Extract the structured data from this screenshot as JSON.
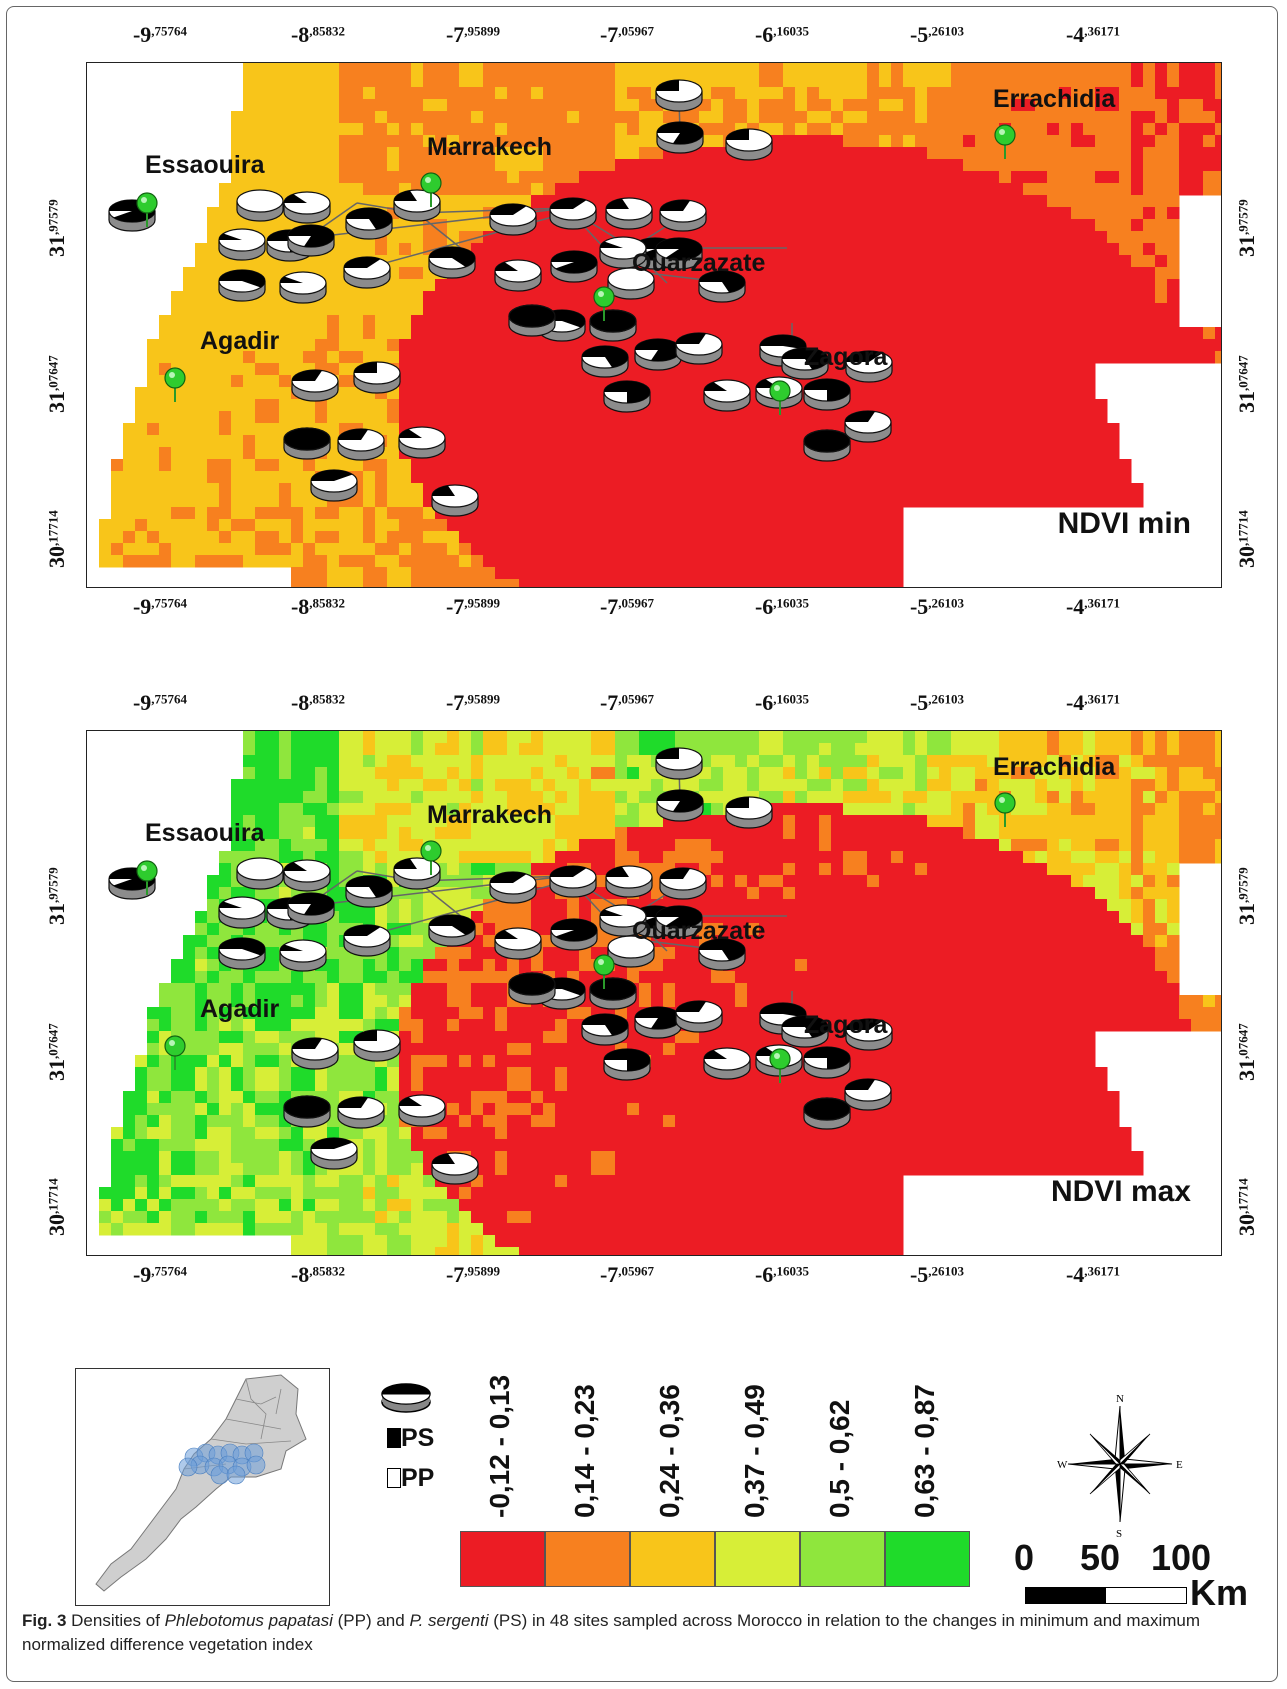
{
  "figure": {
    "caption_label": "Fig. 3",
    "caption_parts": [
      {
        "text": " Densities of ",
        "italic": false
      },
      {
        "text": "Phlebotomus papatasi",
        "italic": true
      },
      {
        "text": " (PP) and ",
        "italic": false
      },
      {
        "text": "P. sergenti",
        "italic": true
      },
      {
        "text": " (PS) in 48 sites sampled across Morocco in relation to the changes in minimum and maximum normalized difference vegetation index",
        "italic": false
      }
    ]
  },
  "lon_ticks": [
    {
      "int": "-9",
      "dec": ",75764"
    },
    {
      "int": "-8",
      "dec": ",85832"
    },
    {
      "int": "-7",
      "dec": ",95899"
    },
    {
      "int": "-7",
      "dec": ",05967"
    },
    {
      "int": "-6",
      "dec": ",16035"
    },
    {
      "int": "-5",
      "dec": ",26103"
    },
    {
      "int": "-4",
      "dec": ",36171"
    }
  ],
  "lat_ticks": [
    {
      "int": "31",
      "dec": ",97579"
    },
    {
      "int": "31",
      "dec": ",07647"
    },
    {
      "int": "30",
      "dec": ",17714"
    }
  ],
  "panels": [
    {
      "label": "NDVI min",
      "palette": "min"
    },
    {
      "label": "NDVI max",
      "palette": "max"
    }
  ],
  "cities": [
    {
      "name": "Essaouira"
    },
    {
      "name": "Marrakech"
    },
    {
      "name": "Ouarzazate"
    },
    {
      "name": "Agadir"
    },
    {
      "name": "Zagora"
    },
    {
      "name": "Errachidia"
    }
  ],
  "sites_ps_fraction": [
    0.25,
    0.8,
    0.25,
    0.9,
    0.0,
    0.15,
    0.7,
    0.2,
    0.35,
    0.35,
    0.2,
    0.3,
    0.1,
    0.75,
    0.8,
    0.35,
    0.6,
    0.1,
    0.65,
    0.15,
    0.9,
    0.9,
    0.1,
    0.85,
    0.0,
    0.7,
    0.6,
    1.0,
    0.7,
    0.8,
    0.3,
    0.25,
    1.0,
    0.75,
    0.3,
    0.55,
    0.35,
    0.15,
    0.15,
    0.75,
    0.7,
    0.3,
    1.0,
    1.0,
    0.3,
    0.15,
    0.4,
    0.2
  ],
  "legend": {
    "species": [
      {
        "code": "PS",
        "fill": "#000000"
      },
      {
        "code": "PP",
        "fill": "#ffffff"
      }
    ],
    "classes": [
      {
        "range": "-0,12 - 0,13",
        "color": "#ec1c24"
      },
      {
        "range": "0,14 - 0,23",
        "color": "#f7801f"
      },
      {
        "range": "0,24 - 0,36",
        "color": "#f8c51a"
      },
      {
        "range": "0,37 - 0,49",
        "color": "#d7ee37"
      },
      {
        "range": "0,5 - 0,62",
        "color": "#8fe63d"
      },
      {
        "range": "0,63 - 0,87",
        "color": "#1fdb2a"
      }
    ]
  },
  "compass": {
    "n": "N",
    "s": "S",
    "e": "E",
    "w": "W"
  },
  "scale": {
    "labels": [
      "0",
      "50",
      "100"
    ],
    "unit": "Km"
  }
}
